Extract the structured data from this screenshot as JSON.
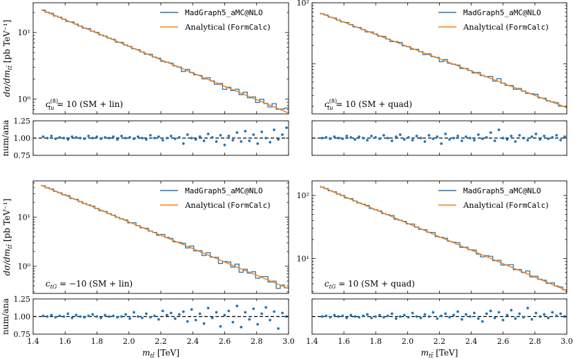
{
  "colors": {
    "numerical": "#1f77b4",
    "analytical": "#ff7f0e",
    "reference": "#000000"
  },
  "shared": {
    "xlabel": "m_tt̄ [TeV]",
    "xlabel_main": "m",
    "xlabel_sub": "tt̄",
    "xlabel_unit": "[TeV]",
    "ylabel_main": "dσ/dm",
    "ylabel_sub": "tt̄",
    "ylabel_unit": "[pb TeV⁻¹]",
    "ratio_ylabel": "num/ana",
    "legend_numerical_label": "MadGraph5_aMC@NLO",
    "legend_analytical_label_prefix": "Analytical (",
    "legend_analytical_label_code": "FormCalc",
    "legend_analytical_label_suffix": ")",
    "x_ticks": [
      "1.4",
      "1.6",
      "1.8",
      "2.0",
      "2.2",
      "2.4",
      "2.6",
      "2.8",
      "3.0"
    ],
    "ratio_ticks": [
      "0.75",
      "1.00",
      "1.25"
    ]
  },
  "chart_data": [
    {
      "type": "line",
      "panel": "top-left",
      "annotation_coef": "c",
      "annotation_sup": "(8)",
      "annotation_sub": "tu",
      "annotation_rest": "= 10 (SM + lin)",
      "xlim": [
        1.4,
        3.0
      ],
      "ylim_log": [
        0.6,
        28
      ],
      "y_tick_labels": [
        "10⁰",
        "10¹"
      ],
      "y_tick_values": [
        1,
        10
      ],
      "analytical_endpoints": [
        [
          1.45,
          22
        ],
        [
          3.0,
          0.62
        ]
      ],
      "ratio_ylim": [
        0.75,
        1.25
      ],
      "ratio_values": [
        1.02,
        1.0,
        1.03,
        0.99,
        1.01,
        1.0,
        0.98,
        1.02,
        1.01,
        1.0,
        0.99,
        1.03,
        1.0,
        1.02,
        0.99,
        1.01,
        1.0,
        1.02,
        0.98,
        1.03,
        1.0,
        1.01,
        0.99,
        1.02,
        1.0,
        0.98,
        1.04,
        1.0,
        1.02,
        0.97,
        1.0,
        1.03,
        0.99,
        1.01,
        0.92,
        1.05,
        1.0,
        0.98,
        1.02,
        0.96,
        1.06,
        1.01,
        0.95,
        1.04,
        0.9,
        1.03,
        0.97,
        1.08,
        0.95,
        1.1,
        0.96,
        1.05,
        0.92,
        1.09,
        1.0,
        0.94,
        1.12,
        0.98,
        1.05,
        1.15
      ]
    },
    {
      "type": "line",
      "panel": "top-right",
      "annotation_coef": "c",
      "annotation_sup": "(8)",
      "annotation_sub": "tu",
      "annotation_rest": "= 10 (SM + quad)",
      "xlim": [
        1.4,
        3.0
      ],
      "ylim_log": [
        1.5,
        100
      ],
      "y_tick_labels": [
        "10²"
      ],
      "y_tick_values": [
        100
      ],
      "analytical_endpoints": [
        [
          1.45,
          68
        ],
        [
          3.0,
          1.9
        ]
      ],
      "ratio_ylim": [
        0.75,
        1.25
      ],
      "ratio_values": [
        1.0,
        1.01,
        0.99,
        1.02,
        1.0,
        0.99,
        1.03,
        1.01,
        0.98,
        1.02,
        1.0,
        0.97,
        1.03,
        1.01,
        0.99,
        1.04,
        1.0,
        0.96,
        1.02,
        1.05,
        0.98,
        1.01,
        0.97,
        1.03,
        1.0,
        0.95,
        1.04,
        0.99,
        1.02,
        0.92,
        1.06,
        0.98,
        1.0,
        1.03,
        0.96,
        1.02,
        1.0,
        0.97,
        1.05,
        0.99,
        1.01,
        1.08,
        0.96,
        1.12,
        1.0,
        0.98,
        1.03,
        0.95,
        1.04,
        1.0,
        0.97,
        1.02,
        1.06,
        0.98,
        1.03,
        0.99,
        1.01,
        1.04,
        0.97,
        1.02
      ]
    },
    {
      "type": "line",
      "panel": "bottom-left",
      "annotation_coef": "c",
      "annotation_sup": "",
      "annotation_sub": "tG",
      "annotation_rest": "= −10 (SM + lin)",
      "xlim": [
        1.4,
        3.0
      ],
      "ylim_log": [
        0.28,
        55
      ],
      "y_tick_labels": [
        "10⁰",
        "10¹"
      ],
      "y_tick_values": [
        1,
        10
      ],
      "analytical_endpoints": [
        [
          1.45,
          45
        ],
        [
          3.0,
          0.35
        ]
      ],
      "ratio_ylim": [
        0.75,
        1.25
      ],
      "ratio_values": [
        1.01,
        1.0,
        1.02,
        0.99,
        1.01,
        1.0,
        1.04,
        0.98,
        1.02,
        1.0,
        0.99,
        1.01,
        1.03,
        1.0,
        0.98,
        1.02,
        1.0,
        1.01,
        0.99,
        1.0,
        1.03,
        0.97,
        1.06,
        1.0,
        0.98,
        1.04,
        0.99,
        1.01,
        0.96,
        1.08,
        1.02,
        1.05,
        0.97,
        1.03,
        1.07,
        0.93,
        1.1,
        0.95,
        1.04,
        0.9,
        1.12,
        0.98,
        1.06,
        0.86,
        1.02,
        1.08,
        0.92,
        1.15,
        0.85,
        1.06,
        0.96,
        1.11,
        0.89,
        1.04,
        1.13,
        0.95,
        1.07,
        0.83,
        1.05,
        1.0
      ]
    },
    {
      "type": "line",
      "panel": "bottom-right",
      "annotation_coef": "c",
      "annotation_sup": "",
      "annotation_sub": "tG",
      "annotation_rest": "= 10 (SM + quad)",
      "xlim": [
        1.4,
        3.0
      ],
      "ylim_log": [
        2.8,
        170
      ],
      "y_tick_labels": [
        "10¹",
        "10²"
      ],
      "y_tick_values": [
        10,
        100
      ],
      "analytical_endpoints": [
        [
          1.45,
          140
        ],
        [
          3.0,
          3.1
        ]
      ],
      "ratio_ylim": [
        0.75,
        1.25
      ],
      "ratio_values": [
        1.0,
        1.01,
        0.99,
        1.02,
        1.0,
        1.01,
        0.98,
        1.02,
        1.0,
        0.99,
        1.01,
        1.03,
        0.98,
        1.0,
        1.02,
        0.99,
        1.01,
        1.04,
        0.97,
        1.0,
        1.02,
        0.99,
        1.05,
        1.0,
        0.98,
        1.03,
        1.0,
        1.06,
        0.97,
        1.01,
        1.04,
        0.99,
        1.02,
        1.07,
        0.96,
        1.03,
        1.0,
        1.05,
        0.97,
        0.93,
        1.04,
        1.08,
        0.98,
        1.06,
        0.95,
        1.02,
        1.09,
        0.97,
        1.04,
        0.99,
        1.12,
        0.96,
        1.05,
        1.0,
        1.03,
        0.98,
        1.06,
        1.01,
        1.04,
        1.0
      ]
    }
  ]
}
